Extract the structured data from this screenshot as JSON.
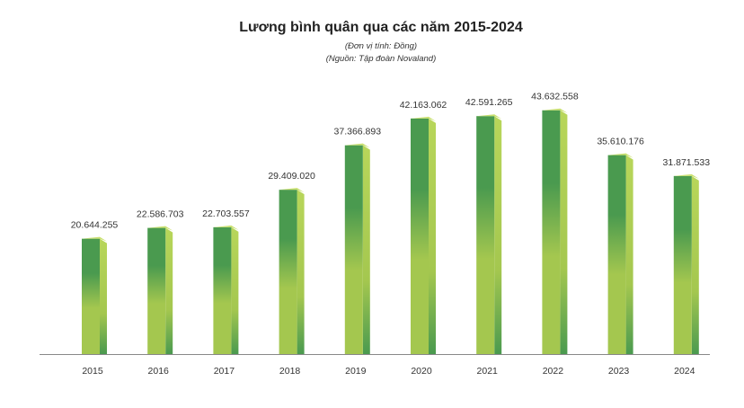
{
  "chart_data": {
    "type": "bar",
    "title": "Lương bình quân qua các năm 2015-2024",
    "subtitle_unit": "(Đơn vị tính: Đồng)",
    "subtitle_source": "(Nguồn: Tập đoàn Novaland)",
    "xlabel": "",
    "ylabel": "",
    "categories": [
      "2015",
      "2016",
      "2017",
      "2018",
      "2019",
      "2020",
      "2021",
      "2022",
      "2023",
      "2024"
    ],
    "values": [
      20644255,
      22586703,
      22703557,
      29409020,
      37366893,
      42163062,
      42591265,
      43632558,
      35610176,
      31871533
    ],
    "value_labels": [
      "20.644.255",
      "22.586.703",
      "22.703.557",
      "29.409.020",
      "37.366.893",
      "42.163.062",
      "42.591.265",
      "43.632.558",
      "35.610.176",
      "31.871.533"
    ],
    "ylim": [
      0,
      46000000
    ],
    "grid": false,
    "legend": "none",
    "colors": {
      "bar_dark": "#4a9a4f",
      "bar_light": "#a4c74f",
      "side": "#b8d65a",
      "top": "#c9e06e",
      "axis": "#888888"
    }
  }
}
